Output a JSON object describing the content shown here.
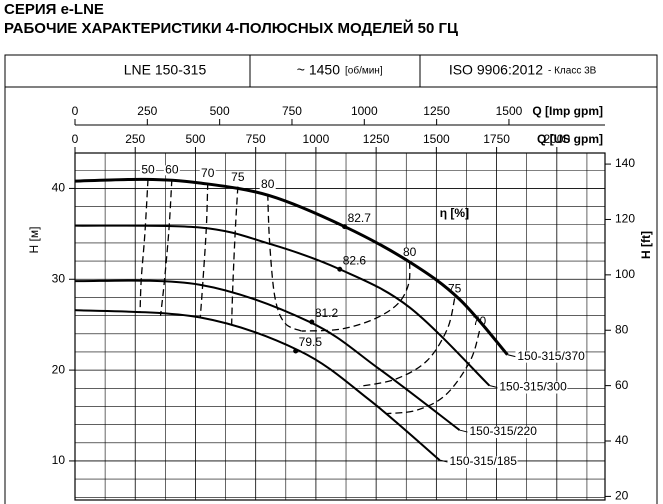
{
  "header": {
    "series": "СЕРИЯ e-LNE",
    "title": "РАБОЧИЕ ХАРАКТЕРИСТИКИ 4-ПОЛЮСНЫХ МОДЕЛЕЙ 50 ГЦ"
  },
  "info": {
    "model": "LNE 150-315",
    "speed": "~ 1450",
    "speed_unit": "[об/мин]",
    "standard": "ISO 9906:2012",
    "class": "- Класс 3B"
  },
  "chart_data": {
    "type": "line",
    "xlabel": "Q [US gpm]",
    "x2label": "Q [Imp gpm]",
    "ylabel": "H [м]",
    "y2label": "H [ft]",
    "xlim": [
      0,
      2200
    ],
    "xticks": [
      0,
      250,
      500,
      750,
      1000,
      1250,
      1500,
      1750,
      2000
    ],
    "x2lim": [
      0,
      1832
    ],
    "x2ticks": [
      0,
      250,
      500,
      750,
      1000,
      1250,
      1500
    ],
    "ylim": [
      5.7,
      43.9
    ],
    "yticks": [
      10,
      20,
      30,
      40
    ],
    "y2lim": [
      18.7,
      144
    ],
    "y2ticks": [
      20,
      40,
      60,
      80,
      100,
      120,
      140
    ],
    "xminor": [
      125,
      375,
      625,
      875,
      1125,
      1375,
      1625,
      1875,
      2125
    ],
    "yminor": [
      6,
      8,
      12,
      14,
      16,
      18,
      22,
      24,
      26,
      28,
      32,
      34,
      36,
      38,
      42
    ],
    "grid": true,
    "series": [
      {
        "name": "150-315/370",
        "color": "#000000",
        "x": [
          0,
          290,
          518,
          808,
          1119,
          1389,
          1596,
          1795
        ],
        "values": [
          40.8,
          41.0,
          40.6,
          39.2,
          35.8,
          31.9,
          27.8,
          21.7
        ]
      },
      {
        "name": "150-315/300",
        "color": "#000000",
        "x": [
          0,
          518,
          808,
          1099,
          1389,
          1720
        ],
        "values": [
          35.9,
          35.7,
          33.9,
          31.1,
          26.9,
          18.3
        ]
      },
      {
        "name": "150-315/220",
        "color": "#000000",
        "x": [
          0,
          518,
          974,
          1264,
          1596
        ],
        "values": [
          29.8,
          29.4,
          25.3,
          20.1,
          13.4
        ]
      },
      {
        "name": "150-315/185",
        "color": "#000000",
        "x": [
          0,
          518,
          933,
          1223,
          1513
        ],
        "values": [
          26.6,
          25.8,
          22.1,
          16.7,
          10.1
        ]
      }
    ],
    "efficiency_label": {
      "text": "η [%]",
      "x": 1514,
      "y": 37.2
    },
    "efficiency_curves": [
      {
        "name": "50",
        "x": [
          303,
          290,
          275,
          270
        ],
        "values": [
          41.0,
          35.0,
          30.0,
          26.3
        ]
      },
      {
        "name": "60",
        "x": [
          402,
          390,
          370,
          355
        ],
        "values": [
          41.0,
          35.5,
          29.5,
          26.0
        ]
      },
      {
        "name": "70",
        "x": [
          551,
          545,
          530,
          520
        ],
        "values": [
          40.6,
          35.6,
          29.4,
          25.8
        ]
      },
      {
        "name": "75",
        "x": [
          676,
          665,
          655,
          650
        ],
        "values": [
          40.2,
          35.2,
          29.2,
          24.8
        ]
      },
      {
        "name": "80",
        "x": [
          800,
          808,
          830,
          870,
          940
        ],
        "values": [
          39.4,
          34.0,
          28.0,
          25.2,
          24.3
        ]
      },
      {
        "name": "80",
        "x": [
          1389,
          1385,
          1340,
          1240,
          1100,
          940
        ],
        "values": [
          31.9,
          29.5,
          27.3,
          25.6,
          24.5,
          24.3
        ]
      },
      {
        "name": "75",
        "x": [
          1576,
          1545,
          1460,
          1330,
          1180
        ],
        "values": [
          27.9,
          24.5,
          21.0,
          19.0,
          18.2
        ]
      },
      {
        "name": "70",
        "x": [
          1679,
          1640,
          1540,
          1420,
          1290
        ],
        "values": [
          24.3,
          21.0,
          17.3,
          15.6,
          15.2
        ]
      }
    ],
    "bep_points": [
      {
        "value": 82.7,
        "x": 1119,
        "y": 35.8
      },
      {
        "value": 82.6,
        "x": 1099,
        "y": 31.1
      },
      {
        "value": 81.2,
        "x": 983,
        "y": 25.3
      },
      {
        "value": 79.5,
        "x": 916,
        "y": 22.1
      }
    ]
  }
}
